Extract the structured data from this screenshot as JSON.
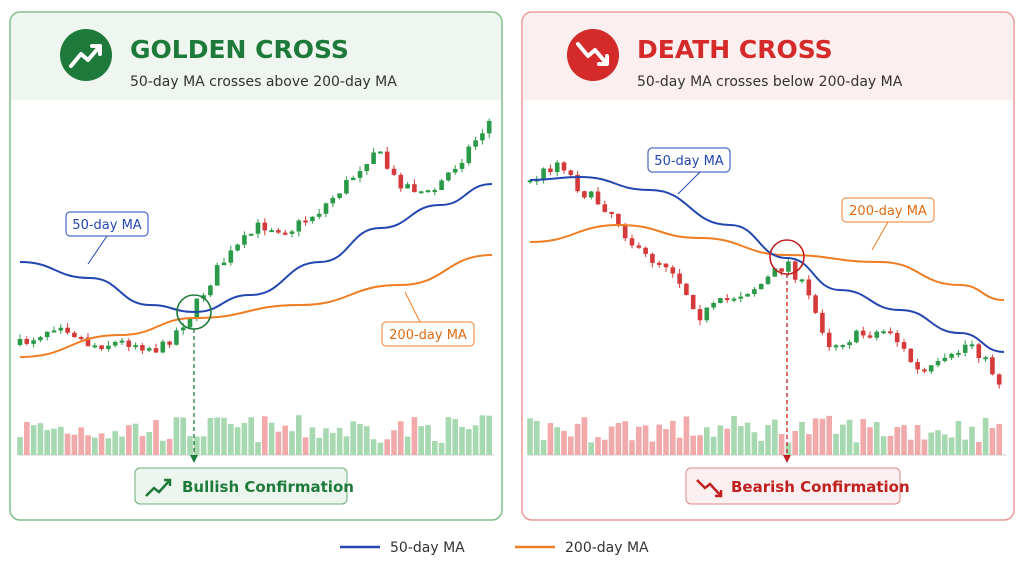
{
  "panels": [
    {
      "title": "GOLDEN CROSS",
      "subtitle": "50-day MA crosses above 200-day MA",
      "fast_label": "50-day MA",
      "slow_label": "200-day MA",
      "confirmation": "Bullish Confirmation"
    },
    {
      "title": "DEATH CROSS",
      "subtitle": "50-day MA crosses below 200-day MA",
      "fast_label": "50-day MA",
      "slow_label": "200-day MA",
      "confirmation": "Bearish Confirmation"
    }
  ],
  "legend": [
    {
      "label": "50-day MA",
      "color": "#2346b0"
    },
    {
      "label": "200-day MA",
      "color": "#f07d22"
    }
  ]
}
